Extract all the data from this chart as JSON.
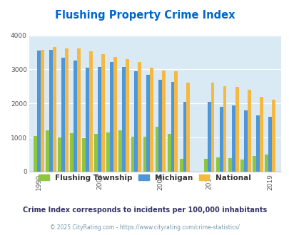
{
  "title": "Flushing Property Crime Index",
  "title_color": "#0066cc",
  "bg_color": "#daeaf4",
  "years_pre": [
    1999,
    2000,
    2001,
    2002,
    2003,
    2004,
    2005,
    2006,
    2007,
    2008,
    2009,
    2010,
    2011
  ],
  "years_post": [
    2014,
    2015,
    2016,
    2017,
    2018,
    2019
  ],
  "flushing_pre": [
    1050,
    1200,
    1000,
    1120,
    970,
    1100,
    1140,
    1220,
    1020,
    1020,
    1310,
    1100,
    380
  ],
  "michigan_pre": [
    3560,
    3580,
    3340,
    3260,
    3050,
    3070,
    3220,
    3070,
    2940,
    2840,
    2700,
    2630,
    2050
  ],
  "national_pre": [
    3580,
    3650,
    3620,
    3610,
    3530,
    3450,
    3360,
    3290,
    3210,
    3050,
    2970,
    2950,
    2620
  ],
  "flushing_post": [
    380,
    410,
    390,
    360,
    450,
    490
  ],
  "michigan_post": [
    2050,
    1900,
    1940,
    1800,
    1650,
    1610
  ],
  "national_post": [
    2600,
    2510,
    2490,
    2400,
    2190,
    2110
  ],
  "flushing_color": "#8dc63f",
  "michigan_color": "#4d96d9",
  "national_color": "#f5b942",
  "ylim": [
    0,
    4000
  ],
  "yticks": [
    0,
    1000,
    2000,
    3000,
    4000
  ],
  "xtick_years": [
    1999,
    2004,
    2009,
    2014,
    2019
  ],
  "subtitle": "Crime Index corresponds to incidents per 100,000 inhabitants",
  "footer": "© 2025 CityRating.com - https://www.cityrating.com/crime-statistics/",
  "legend_labels": [
    "Flushing Township",
    "Michigan",
    "National"
  ],
  "bar_width": 0.85
}
